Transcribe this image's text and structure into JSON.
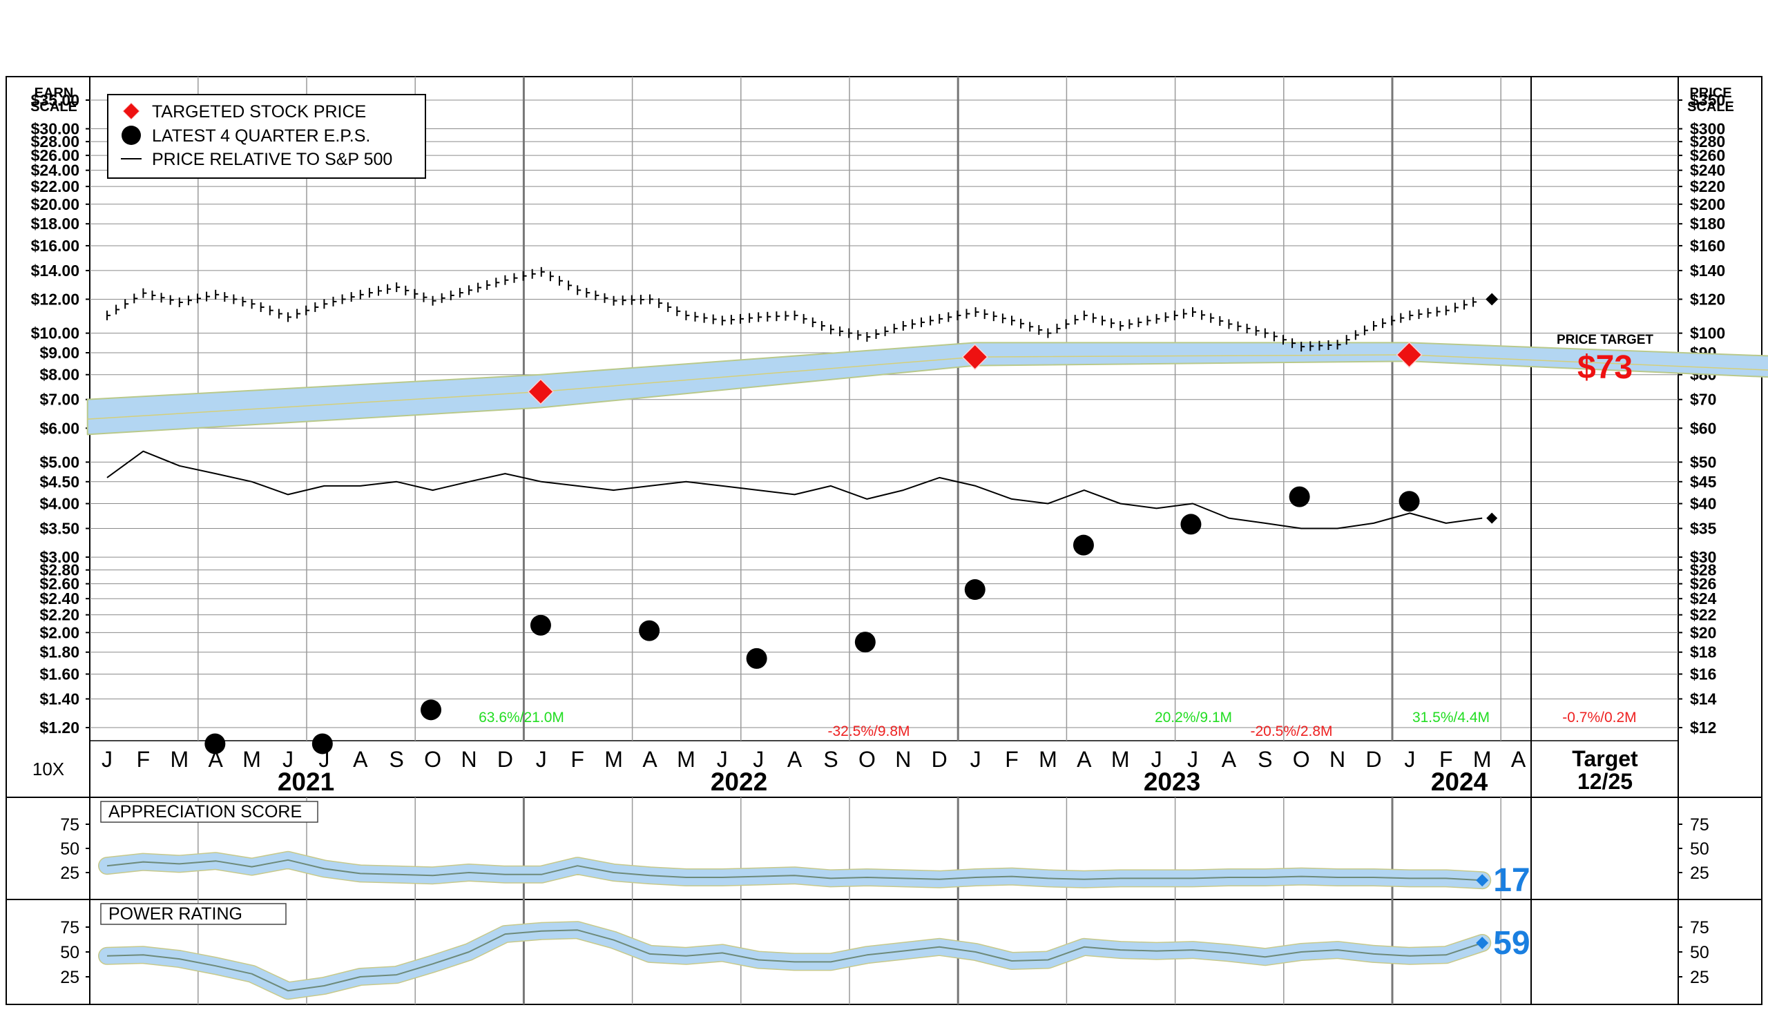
{
  "main_chart": {
    "left_scale_title": [
      "EARN",
      "SCALE"
    ],
    "right_scale_title": [
      "PRICE",
      "SCALE"
    ],
    "left_ticks": [
      "$35.00",
      "$30.00",
      "$28.00",
      "$26.00",
      "$24.00",
      "$22.00",
      "$20.00",
      "$18.00",
      "$16.00",
      "$14.00",
      "$12.00",
      "$10.00",
      "$9.00",
      "$8.00",
      "$7.00",
      "$6.00",
      "$5.00",
      "$4.50",
      "$4.00",
      "$3.50",
      "$3.00",
      "$2.80",
      "$2.60",
      "$2.40",
      "$2.20",
      "$2.00",
      "$1.80",
      "$1.60",
      "$1.40",
      "$1.20"
    ],
    "right_ticks": [
      "$350",
      "$300",
      "$280",
      "$260",
      "$240",
      "$220",
      "$200",
      "$180",
      "$160",
      "$140",
      "$120",
      "$100",
      "$90",
      "$80",
      "$70",
      "$60",
      "$50",
      "$45",
      "$40",
      "$35",
      "$30",
      "$28",
      "$26",
      "$24",
      "$22",
      "$20",
      "$18",
      "$16",
      "$14",
      "$12"
    ],
    "legend": [
      {
        "label": "TARGETED STOCK PRICE",
        "marker": "red-diamond"
      },
      {
        "label": "LATEST 4 QUARTER E.P.S.",
        "marker": "black-dot"
      },
      {
        "label": "PRICE RELATIVE TO S&P 500",
        "marker": "black-line"
      }
    ],
    "multiplier_label": "10X",
    "months": [
      "J",
      "F",
      "M",
      "A",
      "M",
      "J",
      "J",
      "A",
      "S",
      "O",
      "N",
      "D",
      "J",
      "F",
      "M",
      "A",
      "M",
      "J",
      "J",
      "A",
      "S",
      "O",
      "N",
      "D",
      "J",
      "F",
      "M",
      "A",
      "M",
      "J",
      "J",
      "A",
      "S",
      "O",
      "N",
      "D",
      "J",
      "F",
      "M",
      "A"
    ],
    "years": [
      "2021",
      "2022",
      "2023",
      "2024"
    ],
    "target_label": [
      "Target",
      "12/25"
    ],
    "price_target_title": "PRICE TARGET",
    "price_target_value": "$73",
    "annotations": [
      {
        "text": "63.6%/21.0M",
        "color": "#22dd22"
      },
      {
        "text": "-32.5%/9.8M",
        "color": "#ee2222"
      },
      {
        "text": "20.2%/9.1M",
        "color": "#22dd22"
      },
      {
        "text": "-20.5%/2.8M",
        "color": "#ee2222"
      },
      {
        "text": "31.5%/4.4M",
        "color": "#22dd22"
      },
      {
        "text": "-0.7%/0.2M",
        "color": "#ee2222"
      }
    ]
  },
  "panels": [
    {
      "title": "APPRECIATION SCORE",
      "ticks": [
        "75",
        "50",
        "25"
      ],
      "latest_value": "17"
    },
    {
      "title": "POWER RATING",
      "ticks": [
        "75",
        "50",
        "25"
      ],
      "latest_value": "59"
    }
  ],
  "colors": {
    "band": "#b3d6f2",
    "target_marker": "#ee1111",
    "score_value": "#1a7fe0"
  },
  "chart_data": [
    {
      "type": "line",
      "title": "",
      "x_axis": "monthly, Jan 2021 to Apr 2024; target Dec 2025",
      "y_scale": "log",
      "ylim_price": [
        12,
        350
      ],
      "ylim_eps": [
        1.2,
        35
      ],
      "series": [
        {
          "name": "TARGETED STOCK PRICE",
          "points": [
            [
              "2020-12-15",
              63
            ],
            [
              "2021-12-31",
              73
            ],
            [
              "2022-12-31",
              88
            ],
            [
              "2023-12-31",
              89
            ],
            [
              "2025-12-31",
              73
            ]
          ],
          "band_low": [
            58,
            67,
            84,
            86,
            70
          ],
          "band_high": [
            70,
            80,
            95,
            95,
            80
          ]
        },
        {
          "name": "LATEST 4 QUARTER E.P.S.",
          "points": [
            [
              "2021-03-31",
              1.1
            ],
            [
              "2021-06-30",
              1.1
            ],
            [
              "2021-09-30",
              1.32
            ],
            [
              "2021-12-31",
              2.08
            ],
            [
              "2022-03-31",
              2.02
            ],
            [
              "2022-06-30",
              1.74
            ],
            [
              "2022-09-30",
              1.9
            ],
            [
              "2022-12-31",
              2.52
            ],
            [
              "2023-03-31",
              3.2
            ],
            [
              "2023-06-30",
              3.58
            ],
            [
              "2023-09-30",
              4.15
            ],
            [
              "2023-12-31",
              4.05
            ]
          ]
        },
        {
          "name": "stock price",
          "points": [
            [
              "2021-01-01",
              110
            ],
            [
              "2021-02-01",
              124
            ],
            [
              "2021-03-01",
              118
            ],
            [
              "2021-04-01",
              123
            ],
            [
              "2021-05-01",
              117
            ],
            [
              "2021-06-01",
              109
            ],
            [
              "2021-07-01",
              117
            ],
            [
              "2021-08-01",
              123
            ],
            [
              "2021-09-01",
              128
            ],
            [
              "2021-10-01",
              119
            ],
            [
              "2021-11-01",
              126
            ],
            [
              "2021-12-01",
              133
            ],
            [
              "2022-01-01",
              139
            ],
            [
              "2022-02-01",
              126
            ],
            [
              "2022-03-01",
              119
            ],
            [
              "2022-04-01",
              120
            ],
            [
              "2022-05-01",
              110
            ],
            [
              "2022-06-01",
              107
            ],
            [
              "2022-07-01",
              109
            ],
            [
              "2022-08-01",
              110
            ],
            [
              "2022-09-01",
              102
            ],
            [
              "2022-10-01",
              98
            ],
            [
              "2022-11-01",
              104
            ],
            [
              "2022-12-01",
              108
            ],
            [
              "2023-01-01",
              112
            ],
            [
              "2023-02-01",
              107
            ],
            [
              "2023-03-01",
              100
            ],
            [
              "2023-04-01",
              110
            ],
            [
              "2023-05-01",
              104
            ],
            [
              "2023-06-01",
              108
            ],
            [
              "2023-07-01",
              112
            ],
            [
              "2023-08-01",
              105
            ],
            [
              "2023-09-01",
              100
            ],
            [
              "2023-10-01",
              93
            ],
            [
              "2023-11-01",
              94
            ],
            [
              "2023-12-01",
              104
            ],
            [
              "2024-01-01",
              110
            ],
            [
              "2024-02-01",
              113
            ],
            [
              "2024-03-01",
              120
            ]
          ]
        },
        {
          "name": "PRICE RELATIVE TO S&P 500",
          "points": [
            [
              "2021-01-01",
              46
            ],
            [
              "2021-02-01",
              53
            ],
            [
              "2021-03-01",
              49
            ],
            [
              "2021-04-01",
              47
            ],
            [
              "2021-05-01",
              45
            ],
            [
              "2021-06-01",
              42
            ],
            [
              "2021-07-01",
              44
            ],
            [
              "2021-08-01",
              44
            ],
            [
              "2021-09-01",
              45
            ],
            [
              "2021-10-01",
              43
            ],
            [
              "2021-11-01",
              45
            ],
            [
              "2021-12-01",
              47
            ],
            [
              "2022-01-01",
              45
            ],
            [
              "2022-02-01",
              44
            ],
            [
              "2022-03-01",
              43
            ],
            [
              "2022-04-01",
              44
            ],
            [
              "2022-05-01",
              45
            ],
            [
              "2022-06-01",
              44
            ],
            [
              "2022-07-01",
              43
            ],
            [
              "2022-08-01",
              42
            ],
            [
              "2022-09-01",
              44
            ],
            [
              "2022-10-01",
              41
            ],
            [
              "2022-11-01",
              43
            ],
            [
              "2022-12-01",
              46
            ],
            [
              "2023-01-01",
              44
            ],
            [
              "2023-02-01",
              41
            ],
            [
              "2023-03-01",
              40
            ],
            [
              "2023-04-01",
              43
            ],
            [
              "2023-05-01",
              40
            ],
            [
              "2023-06-01",
              39
            ],
            [
              "2023-07-01",
              40
            ],
            [
              "2023-08-01",
              37
            ],
            [
              "2023-09-01",
              36
            ],
            [
              "2023-10-01",
              35
            ],
            [
              "2023-11-01",
              35
            ],
            [
              "2023-12-01",
              36
            ],
            [
              "2024-01-01",
              38
            ],
            [
              "2024-02-01",
              36
            ],
            [
              "2024-03-01",
              37
            ]
          ]
        }
      ]
    },
    {
      "type": "line",
      "title": "APPRECIATION SCORE",
      "ylim": [
        0,
        100
      ],
      "series": [
        {
          "name": "APPRECIATION SCORE",
          "points": [
            [
              "2021-01-01",
              32
            ],
            [
              "2021-02-01",
              36
            ],
            [
              "2021-03-01",
              34
            ],
            [
              "2021-04-01",
              37
            ],
            [
              "2021-05-01",
              31
            ],
            [
              "2021-06-01",
              38
            ],
            [
              "2021-07-01",
              29
            ],
            [
              "2021-08-01",
              24
            ],
            [
              "2021-09-01",
              23
            ],
            [
              "2021-10-01",
              22
            ],
            [
              "2021-11-01",
              25
            ],
            [
              "2021-12-01",
              23
            ],
            [
              "2022-01-01",
              23
            ],
            [
              "2022-02-01",
              32
            ],
            [
              "2022-03-01",
              25
            ],
            [
              "2022-04-01",
              22
            ],
            [
              "2022-05-01",
              20
            ],
            [
              "2022-06-01",
              20
            ],
            [
              "2022-07-01",
              21
            ],
            [
              "2022-08-01",
              22
            ],
            [
              "2022-09-01",
              19
            ],
            [
              "2022-10-01",
              20
            ],
            [
              "2022-11-01",
              19
            ],
            [
              "2022-12-01",
              18
            ],
            [
              "2023-01-01",
              20
            ],
            [
              "2023-02-01",
              21
            ],
            [
              "2023-03-01",
              19
            ],
            [
              "2023-04-01",
              18
            ],
            [
              "2023-05-01",
              19
            ],
            [
              "2023-06-01",
              19
            ],
            [
              "2023-07-01",
              19
            ],
            [
              "2023-08-01",
              20
            ],
            [
              "2023-09-01",
              20
            ],
            [
              "2023-10-01",
              21
            ],
            [
              "2023-11-01",
              20
            ],
            [
              "2023-12-01",
              20
            ],
            [
              "2024-01-01",
              19
            ],
            [
              "2024-02-01",
              19
            ],
            [
              "2024-03-01",
              17
            ]
          ]
        }
      ]
    },
    {
      "type": "line",
      "title": "POWER RATING",
      "ylim": [
        0,
        100
      ],
      "series": [
        {
          "name": "POWER RATING",
          "points": [
            [
              "2021-01-01",
              46
            ],
            [
              "2021-02-01",
              47
            ],
            [
              "2021-03-01",
              43
            ],
            [
              "2021-04-01",
              36
            ],
            [
              "2021-05-01",
              28
            ],
            [
              "2021-06-01",
              11
            ],
            [
              "2021-07-01",
              16
            ],
            [
              "2021-08-01",
              25
            ],
            [
              "2021-09-01",
              27
            ],
            [
              "2021-10-01",
              38
            ],
            [
              "2021-11-01",
              50
            ],
            [
              "2021-12-01",
              68
            ],
            [
              "2022-01-01",
              71
            ],
            [
              "2022-02-01",
              72
            ],
            [
              "2022-03-01",
              62
            ],
            [
              "2022-04-01",
              48
            ],
            [
              "2022-05-01",
              46
            ],
            [
              "2022-06-01",
              49
            ],
            [
              "2022-07-01",
              42
            ],
            [
              "2022-08-01",
              40
            ],
            [
              "2022-09-01",
              40
            ],
            [
              "2022-10-01",
              47
            ],
            [
              "2022-11-01",
              51
            ],
            [
              "2022-12-01",
              55
            ],
            [
              "2023-01-01",
              50
            ],
            [
              "2023-02-01",
              41
            ],
            [
              "2023-03-01",
              42
            ],
            [
              "2023-04-01",
              55
            ],
            [
              "2023-05-01",
              52
            ],
            [
              "2023-06-01",
              51
            ],
            [
              "2023-07-01",
              52
            ],
            [
              "2023-08-01",
              49
            ],
            [
              "2023-09-01",
              45
            ],
            [
              "2023-10-01",
              50
            ],
            [
              "2023-11-01",
              52
            ],
            [
              "2023-12-01",
              48
            ],
            [
              "2024-01-01",
              46
            ],
            [
              "2024-02-01",
              47
            ],
            [
              "2024-03-01",
              59
            ]
          ]
        }
      ]
    }
  ]
}
